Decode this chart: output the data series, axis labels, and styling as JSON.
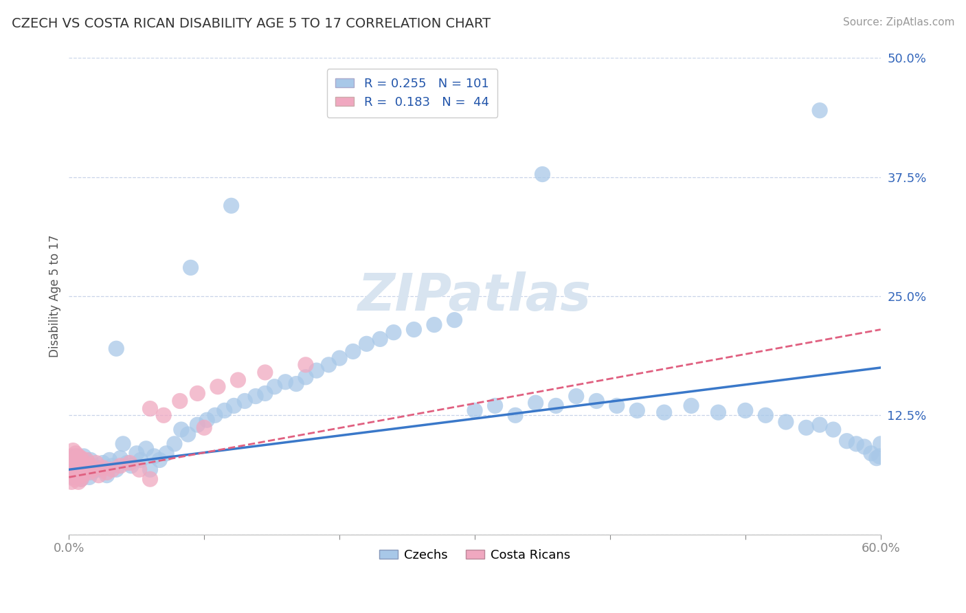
{
  "title": "CZECH VS COSTA RICAN DISABILITY AGE 5 TO 17 CORRELATION CHART",
  "source": "Source: ZipAtlas.com",
  "ylabel": "Disability Age 5 to 17",
  "xlim": [
    0.0,
    0.6
  ],
  "ylim": [
    0.0,
    0.5
  ],
  "xticks": [
    0.0,
    0.1,
    0.2,
    0.3,
    0.4,
    0.5,
    0.6
  ],
  "yticks": [
    0.0,
    0.125,
    0.25,
    0.375,
    0.5
  ],
  "xticklabels": [
    "0.0%",
    "",
    "",
    "",
    "",
    "",
    "60.0%"
  ],
  "yticklabels": [
    "",
    "12.5%",
    "25.0%",
    "37.5%",
    "50.0%"
  ],
  "czech_R": 0.255,
  "czech_N": 101,
  "costa_R": 0.183,
  "costa_N": 44,
  "czech_color": "#a8c8e8",
  "costa_color": "#f0a8c0",
  "czech_line_color": "#3a78c9",
  "costa_line_color": "#e06080",
  "background_color": "#ffffff",
  "grid_color": "#c8d4e8",
  "watermark_color": "#d8e4f0",
  "czech_line_x0": 0.0,
  "czech_line_y0": 0.068,
  "czech_line_x1": 0.6,
  "czech_line_y1": 0.175,
  "costa_line_x0": 0.0,
  "costa_line_y0": 0.06,
  "costa_line_x1": 0.6,
  "costa_line_y1": 0.215,
  "czech_pts_x": [
    0.001,
    0.002,
    0.002,
    0.003,
    0.003,
    0.004,
    0.004,
    0.005,
    0.005,
    0.006,
    0.006,
    0.007,
    0.007,
    0.008,
    0.008,
    0.009,
    0.01,
    0.01,
    0.011,
    0.011,
    0.012,
    0.012,
    0.013,
    0.014,
    0.015,
    0.016,
    0.017,
    0.018,
    0.02,
    0.022,
    0.025,
    0.028,
    0.03,
    0.032,
    0.035,
    0.038,
    0.04,
    0.043,
    0.046,
    0.05,
    0.053,
    0.057,
    0.06,
    0.063,
    0.067,
    0.072,
    0.078,
    0.083,
    0.088,
    0.095,
    0.102,
    0.108,
    0.115,
    0.122,
    0.13,
    0.138,
    0.145,
    0.152,
    0.16,
    0.168,
    0.175,
    0.183,
    0.192,
    0.12,
    0.2,
    0.21,
    0.22,
    0.23,
    0.24,
    0.255,
    0.27,
    0.285,
    0.3,
    0.315,
    0.33,
    0.345,
    0.36,
    0.375,
    0.39,
    0.405,
    0.42,
    0.44,
    0.46,
    0.48,
    0.5,
    0.515,
    0.53,
    0.545,
    0.555,
    0.565,
    0.575,
    0.582,
    0.588,
    0.593,
    0.597,
    0.599,
    0.6,
    0.35,
    0.555,
    0.035,
    0.09
  ],
  "czech_pts_y": [
    0.065,
    0.072,
    0.078,
    0.06,
    0.08,
    0.068,
    0.075,
    0.07,
    0.082,
    0.065,
    0.078,
    0.062,
    0.072,
    0.068,
    0.08,
    0.058,
    0.072,
    0.078,
    0.065,
    0.082,
    0.07,
    0.076,
    0.068,
    0.075,
    0.06,
    0.078,
    0.065,
    0.072,
    0.07,
    0.068,
    0.075,
    0.062,
    0.078,
    0.072,
    0.068,
    0.08,
    0.095,
    0.075,
    0.072,
    0.085,
    0.078,
    0.09,
    0.068,
    0.082,
    0.078,
    0.085,
    0.095,
    0.11,
    0.105,
    0.115,
    0.12,
    0.125,
    0.13,
    0.135,
    0.14,
    0.145,
    0.148,
    0.155,
    0.16,
    0.158,
    0.165,
    0.172,
    0.178,
    0.345,
    0.185,
    0.192,
    0.2,
    0.205,
    0.212,
    0.215,
    0.22,
    0.225,
    0.13,
    0.135,
    0.125,
    0.138,
    0.135,
    0.145,
    0.14,
    0.135,
    0.13,
    0.128,
    0.135,
    0.128,
    0.13,
    0.125,
    0.118,
    0.112,
    0.115,
    0.11,
    0.098,
    0.095,
    0.092,
    0.085,
    0.08,
    0.082,
    0.095,
    0.378,
    0.445,
    0.195,
    0.28
  ],
  "costa_pts_x": [
    0.001,
    0.001,
    0.002,
    0.002,
    0.003,
    0.003,
    0.004,
    0.004,
    0.005,
    0.005,
    0.006,
    0.006,
    0.007,
    0.007,
    0.008,
    0.008,
    0.009,
    0.009,
    0.01,
    0.01,
    0.011,
    0.012,
    0.013,
    0.015,
    0.016,
    0.018,
    0.02,
    0.022,
    0.025,
    0.028,
    0.032,
    0.038,
    0.045,
    0.052,
    0.06,
    0.07,
    0.082,
    0.095,
    0.11,
    0.125,
    0.145,
    0.175,
    0.06,
    0.1
  ],
  "costa_pts_y": [
    0.075,
    0.062,
    0.082,
    0.055,
    0.088,
    0.065,
    0.078,
    0.058,
    0.085,
    0.068,
    0.075,
    0.06,
    0.082,
    0.055,
    0.078,
    0.065,
    0.08,
    0.058,
    0.072,
    0.062,
    0.068,
    0.075,
    0.078,
    0.065,
    0.072,
    0.068,
    0.075,
    0.062,
    0.07,
    0.065,
    0.068,
    0.072,
    0.075,
    0.068,
    0.132,
    0.125,
    0.14,
    0.148,
    0.155,
    0.162,
    0.17,
    0.178,
    0.058,
    0.112
  ]
}
